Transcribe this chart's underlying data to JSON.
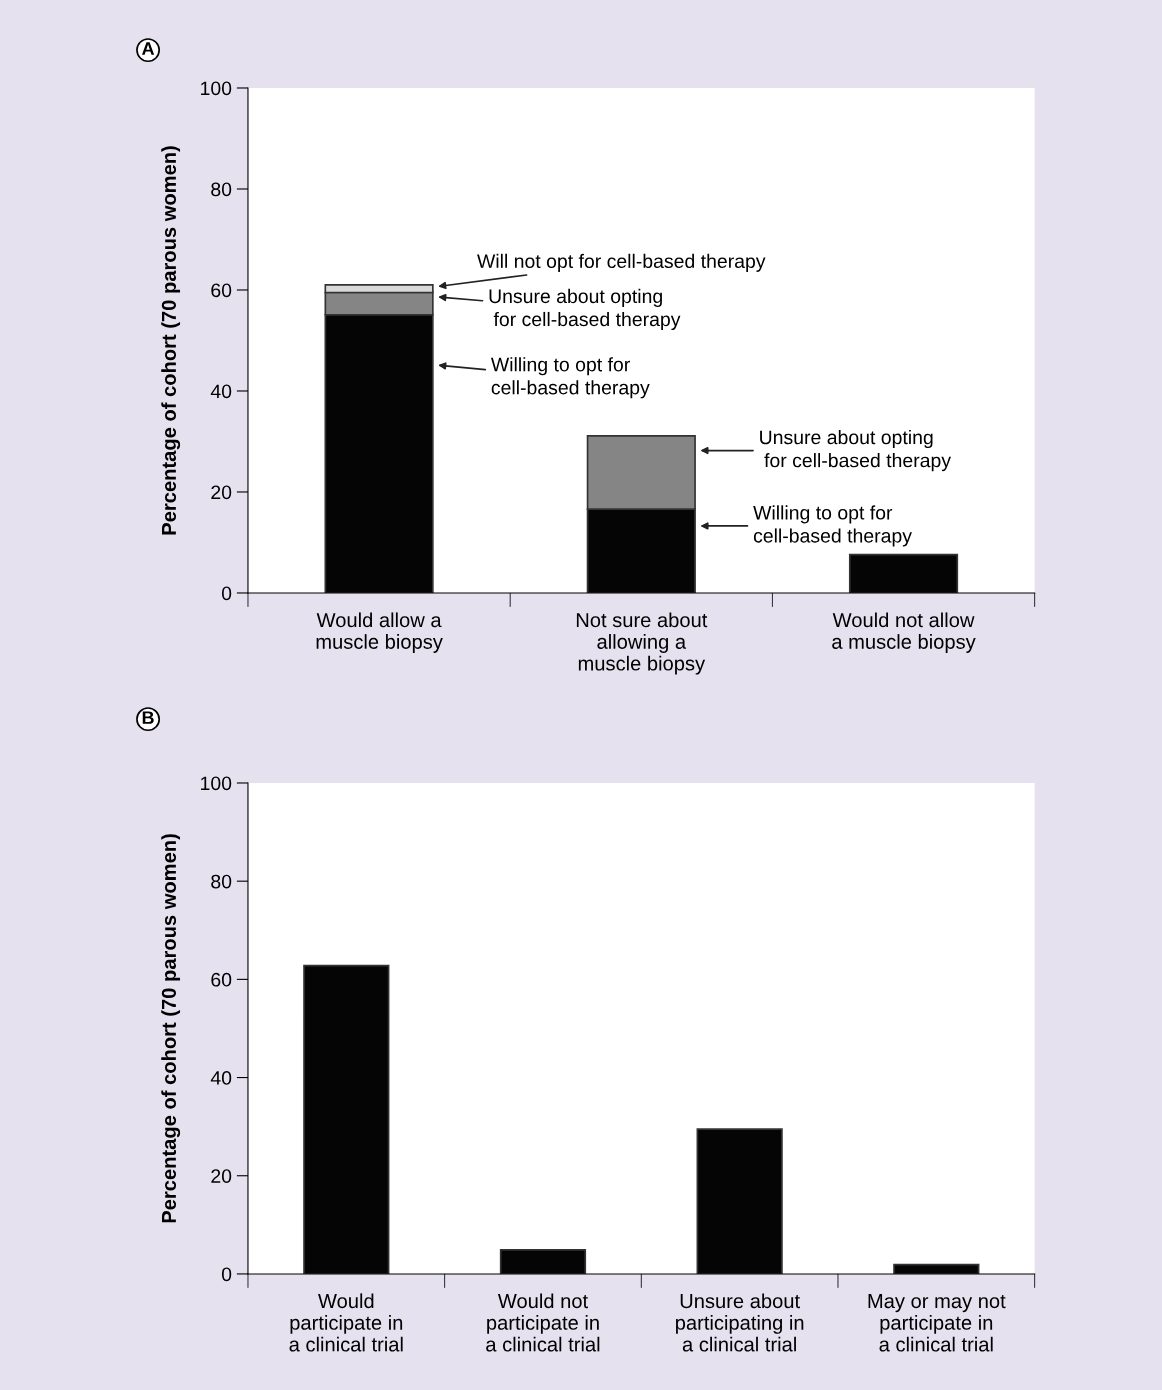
{
  "chart_data": [
    {
      "type": "bar",
      "stacked": true,
      "ylabel": "Percentage of cohort (70 parous women)",
      "categories": [
        "Would allow a\nmuscle biopsy",
        "Not sure about\nallowing a\nmuscle biopsy",
        "Would not allow\na muscle biopsy"
      ],
      "series": [
        {
          "color": "#050505",
          "values": [
            55.1,
            16.6,
            7.6
          ]
        },
        {
          "color": "#858585",
          "values": [
            4.4,
            14.5,
            null
          ]
        },
        {
          "color": "#d9d9d9",
          "values": [
            1.5,
            null,
            null
          ]
        }
      ],
      "ylim": [
        0,
        100
      ],
      "yticks": [
        0,
        20,
        40,
        60,
        80,
        100
      ],
      "annotations": [
        "A",
        "Will not opt for cell-based therapy",
        "Unsure about opting\n for cell-based therapy",
        "Willing to opt for\ncell-based therapy",
        "Unsure about opting\n for cell-based therapy",
        "Willing to opt for\ncell-based therapy"
      ]
    },
    {
      "type": "bar",
      "ylabel": "Percentage of cohort (70 parous women)",
      "categories": [
        "Would\nparticipate in\na clinical trial",
        "Would not\nparticipate in\na clinical trial",
        "Unsure about\nparticipating in\na clinical trial",
        "May or may not\nparticipate in\na clinical trial"
      ],
      "series": [
        {
          "color": "#050505",
          "values": [
            62.8,
            4.9,
            29.5,
            1.9
          ]
        }
      ],
      "ylim": [
        0,
        100
      ],
      "yticks": [
        0,
        20,
        40,
        60,
        80,
        100
      ],
      "annotations": [
        "B"
      ]
    }
  ]
}
